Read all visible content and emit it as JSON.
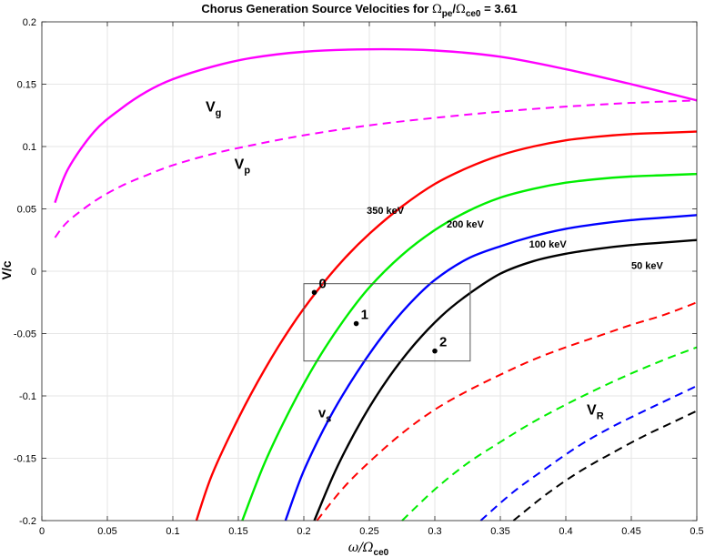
{
  "chart_data": {
    "type": "line",
    "title": {
      "prefix": "Chorus Generation Source Velocities for ",
      "omega_pe": "Ω",
      "omega_pe_sub": "pe",
      "slash": "/",
      "omega_ce": "Ω",
      "omega_ce_sub": "ce0",
      "suffix": " = 3.61"
    },
    "xlabel": {
      "main": "ω/Ω",
      "sub": "ce0"
    },
    "ylabel": "V/c",
    "xlim": [
      0,
      0.5
    ],
    "ylim": [
      -0.2,
      0.2
    ],
    "xticks": [
      "0",
      "0.05",
      "0.1",
      "0.15",
      "0.2",
      "0.25",
      "0.3",
      "0.35",
      "0.4",
      "0.45",
      "0.5"
    ],
    "yticks": [
      "-0.2",
      "-0.15",
      "-0.1",
      "-0.05",
      "0",
      "0.05",
      "0.1",
      "0.15",
      "0.2"
    ],
    "grid": true,
    "series": [
      {
        "color": "#ff00ff",
        "style": "solid",
        "x": [
          0.01,
          0.02,
          0.04,
          0.06,
          0.08,
          0.1,
          0.13,
          0.16,
          0.2,
          0.25,
          0.3,
          0.35,
          0.4,
          0.45,
          0.5
        ],
        "y": [
          0.055,
          0.082,
          0.112,
          0.13,
          0.144,
          0.154,
          0.164,
          0.171,
          0.176,
          0.178,
          0.177,
          0.172,
          0.162,
          0.15,
          0.137
        ]
      },
      {
        "color": "#ff00ff",
        "style": "dashed",
        "x": [
          0.01,
          0.02,
          0.04,
          0.06,
          0.08,
          0.1,
          0.13,
          0.16,
          0.2,
          0.25,
          0.3,
          0.35,
          0.4,
          0.45,
          0.5
        ],
        "y": [
          0.027,
          0.04,
          0.056,
          0.068,
          0.077,
          0.085,
          0.094,
          0.101,
          0.109,
          0.117,
          0.123,
          0.128,
          0.132,
          0.135,
          0.137
        ]
      },
      {
        "color": "#ff0000",
        "style": "solid",
        "label": "350 keV",
        "x": [
          0.118,
          0.13,
          0.15,
          0.17,
          0.19,
          0.21,
          0.23,
          0.25,
          0.275,
          0.3,
          0.325,
          0.35,
          0.375,
          0.4,
          0.425,
          0.45,
          0.475,
          0.5
        ],
        "y": [
          -0.2,
          -0.163,
          -0.118,
          -0.079,
          -0.045,
          -0.016,
          0.009,
          0.03,
          0.052,
          0.07,
          0.083,
          0.093,
          0.1,
          0.105,
          0.108,
          0.11,
          0.111,
          0.112
        ]
      },
      {
        "color": "#00ee00",
        "style": "solid",
        "label": "200 keV",
        "x": [
          0.153,
          0.17,
          0.19,
          0.21,
          0.23,
          0.25,
          0.275,
          0.3,
          0.325,
          0.35,
          0.375,
          0.4,
          0.425,
          0.45,
          0.475,
          0.5
        ],
        "y": [
          -0.2,
          -0.154,
          -0.11,
          -0.072,
          -0.04,
          -0.013,
          0.013,
          0.033,
          0.048,
          0.059,
          0.066,
          0.071,
          0.074,
          0.076,
          0.077,
          0.078
        ]
      },
      {
        "color": "#0000ff",
        "style": "solid",
        "label": "100 keV",
        "x": [
          0.186,
          0.2,
          0.22,
          0.24,
          0.26,
          0.28,
          0.3,
          0.325,
          0.35,
          0.375,
          0.4,
          0.425,
          0.45,
          0.475,
          0.5
        ],
        "y": [
          -0.2,
          -0.16,
          -0.117,
          -0.082,
          -0.052,
          -0.027,
          -0.007,
          0.01,
          0.02,
          0.028,
          0.034,
          0.038,
          0.041,
          0.043,
          0.045
        ]
      },
      {
        "color": "#000000",
        "style": "solid",
        "label": "50 keV",
        "x": [
          0.208,
          0.225,
          0.245,
          0.265,
          0.285,
          0.305,
          0.325,
          0.35,
          0.375,
          0.4,
          0.425,
          0.45,
          0.475,
          0.5
        ],
        "y": [
          -0.2,
          -0.158,
          -0.118,
          -0.085,
          -0.058,
          -0.036,
          -0.019,
          -0.002,
          0.008,
          0.014,
          0.018,
          0.021,
          0.023,
          0.025
        ]
      },
      {
        "color": "#ff0000",
        "style": "dashed",
        "x": [
          0.21,
          0.23,
          0.25,
          0.275,
          0.3,
          0.325,
          0.35,
          0.375,
          0.4,
          0.425,
          0.45,
          0.475,
          0.5
        ],
        "y": [
          -0.2,
          -0.174,
          -0.153,
          -0.13,
          -0.111,
          -0.096,
          -0.083,
          -0.071,
          -0.061,
          -0.052,
          -0.043,
          -0.035,
          -0.025
        ]
      },
      {
        "color": "#00ee00",
        "style": "dashed",
        "x": [
          0.275,
          0.3,
          0.325,
          0.35,
          0.375,
          0.4,
          0.425,
          0.45,
          0.475,
          0.5
        ],
        "y": [
          -0.2,
          -0.175,
          -0.154,
          -0.137,
          -0.121,
          -0.107,
          -0.094,
          -0.082,
          -0.071,
          -0.061
        ]
      },
      {
        "color": "#0000ff",
        "style": "dashed",
        "x": [
          0.335,
          0.36,
          0.385,
          0.41,
          0.435,
          0.46,
          0.48,
          0.5
        ],
        "y": [
          -0.2,
          -0.177,
          -0.158,
          -0.14,
          -0.125,
          -0.112,
          -0.102,
          -0.092
        ]
      },
      {
        "color": "#000000",
        "style": "dashed",
        "x": [
          0.36,
          0.385,
          0.41,
          0.435,
          0.46,
          0.48,
          0.5
        ],
        "y": [
          -0.2,
          -0.179,
          -0.161,
          -0.146,
          -0.132,
          -0.122,
          -0.112
        ]
      }
    ],
    "points": [
      {
        "label": "0",
        "x": 0.208,
        "y": -0.017
      },
      {
        "label": "1",
        "x": 0.24,
        "y": -0.042
      },
      {
        "label": "2",
        "x": 0.3,
        "y": -0.064
      }
    ],
    "box": {
      "x": [
        0.2,
        0.327
      ],
      "y": [
        -0.072,
        -0.01
      ]
    },
    "annotations": [
      {
        "text": "V",
        "sub": "g",
        "x": 0.125,
        "y": 0.128,
        "size": 16
      },
      {
        "text": "V",
        "sub": "p",
        "x": 0.147,
        "y": 0.082,
        "size": 16
      },
      {
        "text": "350 keV",
        "sub": "",
        "x": 0.248,
        "y": 0.046,
        "size": 11
      },
      {
        "text": "200 keV",
        "sub": "",
        "x": 0.309,
        "y": 0.035,
        "size": 11
      },
      {
        "text": "100 keV",
        "sub": "",
        "x": 0.372,
        "y": 0.019,
        "size": 11
      },
      {
        "text": "50 keV",
        "sub": "",
        "x": 0.45,
        "y": 0.002,
        "size": 11
      },
      {
        "text": "v",
        "sub": "s",
        "x": 0.211,
        "y": -0.117,
        "size": 15
      },
      {
        "text": "V",
        "sub": "R",
        "x": 0.416,
        "y": -0.115,
        "size": 16
      }
    ]
  }
}
